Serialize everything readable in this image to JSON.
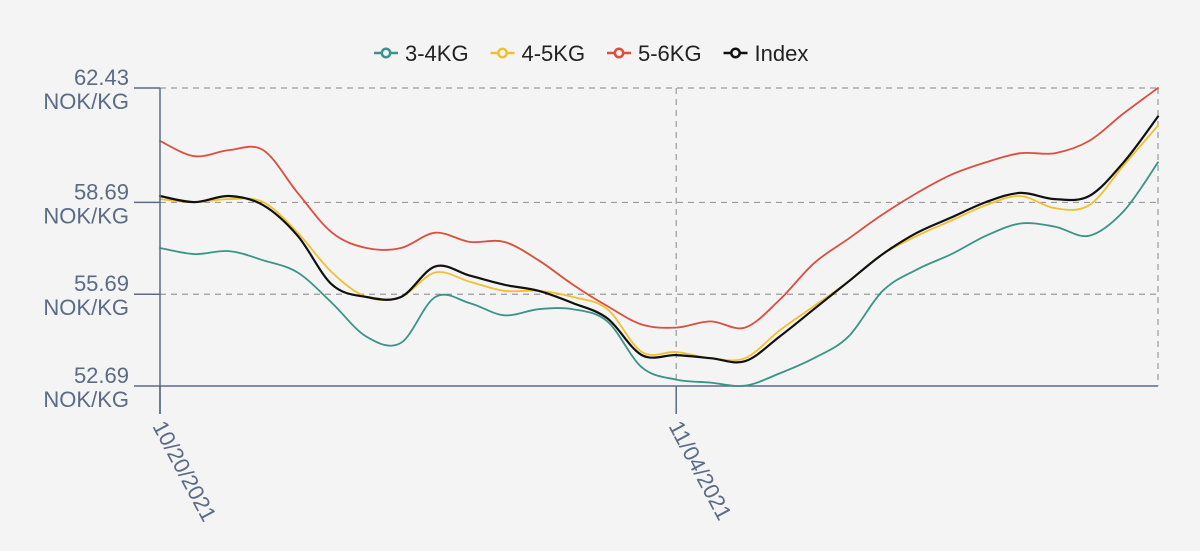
{
  "chart_data": {
    "type": "line",
    "legend_position": "top-center",
    "grid": true,
    "y_unit": "NOK/KG",
    "ylim": [
      52.69,
      62.43
    ],
    "y_ticks": [
      {
        "value": 62.43,
        "line1": "62.43",
        "line2": "NOK/KG"
      },
      {
        "value": 58.69,
        "line1": "58.69",
        "line2": "NOK/KG"
      },
      {
        "value": 55.69,
        "line1": "55.69",
        "line2": "NOK/KG"
      },
      {
        "value": 52.69,
        "line1": "52.69",
        "line2": "NOK/KG"
      }
    ],
    "x_ticks": [
      "10/20/2021",
      "11/04/2021"
    ],
    "x": [
      "10/20/2021",
      "10/21/2021",
      "10/22/2021",
      "10/23/2021",
      "10/24/2021",
      "10/25/2021",
      "10/26/2021",
      "10/27/2021",
      "10/28/2021",
      "10/29/2021",
      "10/30/2021",
      "10/31/2021",
      "11/01/2021",
      "11/02/2021",
      "11/03/2021",
      "11/04/2021",
      "11/05/2021",
      "11/06/2021",
      "11/07/2021",
      "11/08/2021",
      "11/09/2021",
      "11/10/2021",
      "11/11/2021",
      "11/12/2021",
      "11/13/2021",
      "11/14/2021",
      "11/15/2021",
      "11/16/2021",
      "11/17/2021",
      "11/18/2021"
    ],
    "series": [
      {
        "name": "3-4KG",
        "color": "#3a9488",
        "values": [
          57.2,
          57.0,
          57.1,
          56.8,
          56.4,
          55.4,
          54.3,
          54.1,
          55.6,
          55.4,
          55.0,
          55.2,
          55.2,
          54.8,
          53.3,
          52.9,
          52.8,
          52.7,
          53.1,
          53.6,
          54.3,
          55.8,
          56.5,
          57.0,
          57.6,
          58.0,
          57.9,
          57.6,
          58.4,
          60.0
        ]
      },
      {
        "name": "4-5KG",
        "color": "#f2bf2e",
        "values": [
          58.8,
          58.7,
          58.8,
          58.7,
          57.7,
          56.4,
          55.6,
          55.6,
          56.4,
          56.1,
          55.8,
          55.8,
          55.6,
          55.2,
          53.8,
          53.8,
          53.6,
          53.6,
          54.5,
          55.3,
          56.1,
          57.0,
          57.6,
          58.1,
          58.6,
          58.9,
          58.5,
          58.6,
          59.9,
          61.2
        ]
      },
      {
        "name": "5-6KG",
        "color": "#dd4e3c",
        "values": [
          60.7,
          60.2,
          60.4,
          60.4,
          59.0,
          57.7,
          57.2,
          57.2,
          57.7,
          57.4,
          57.4,
          56.8,
          56.0,
          55.3,
          54.7,
          54.6,
          54.8,
          54.6,
          55.5,
          56.7,
          57.5,
          58.3,
          59.0,
          59.6,
          60.0,
          60.3,
          60.3,
          60.7,
          61.6,
          62.43
        ]
      },
      {
        "name": "Index",
        "color": "#111111",
        "values": [
          58.9,
          58.7,
          58.9,
          58.6,
          57.6,
          56.0,
          55.6,
          55.6,
          56.6,
          56.3,
          56.0,
          55.8,
          55.4,
          54.9,
          53.7,
          53.7,
          53.6,
          53.5,
          54.3,
          55.2,
          56.1,
          57.0,
          57.7,
          58.2,
          58.7,
          59.0,
          58.8,
          58.9,
          60.0,
          61.5
        ]
      }
    ]
  }
}
